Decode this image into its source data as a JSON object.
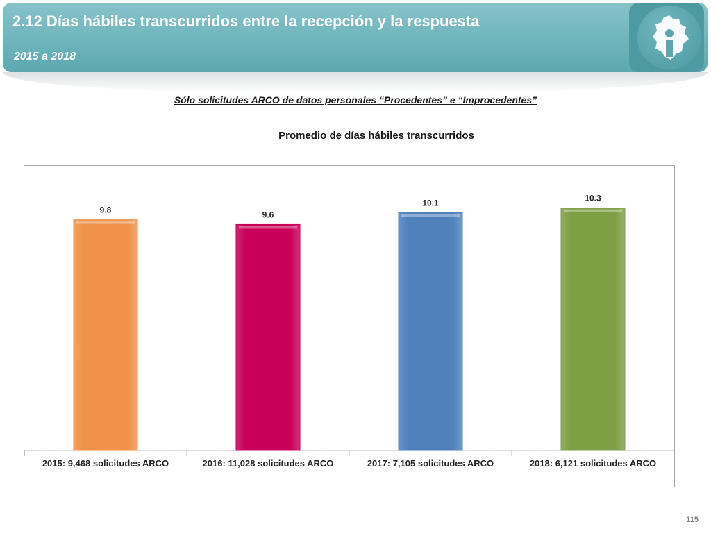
{
  "header": {
    "title": "2.12 Días hábiles transcurridos entre la recepción y la respuesta",
    "subtitle": "2015 a 2018",
    "logo_icon": "cdmx-map-info-icon",
    "color": "#6fb4bb"
  },
  "subtitle_line": "Sólo solicitudes ARCO de datos personales “Procedentes” e “Improcedentes”",
  "page_number": "115",
  "chart_data": {
    "type": "bar",
    "title": "Promedio de días hábiles transcurridos",
    "xlabel": "",
    "ylabel": "",
    "ylim": [
      0,
      11.5
    ],
    "grid": false,
    "legend": false,
    "categories": [
      "2015: 9,468 solicitudes ARCO",
      "2016: 11,028 solicitudes ARCO",
      "2017:  7,105 solicitudes ARCO",
      "2018:  6,121 solicitudes ARCO"
    ],
    "values": [
      9.8,
      9.6,
      10.1,
      10.3
    ],
    "data_labels": [
      "9.8",
      "9.6",
      "10.1",
      "10.3"
    ],
    "colors": [
      "#f0924a",
      "#c8005a",
      "#4f81bd",
      "#7f9f45"
    ]
  }
}
